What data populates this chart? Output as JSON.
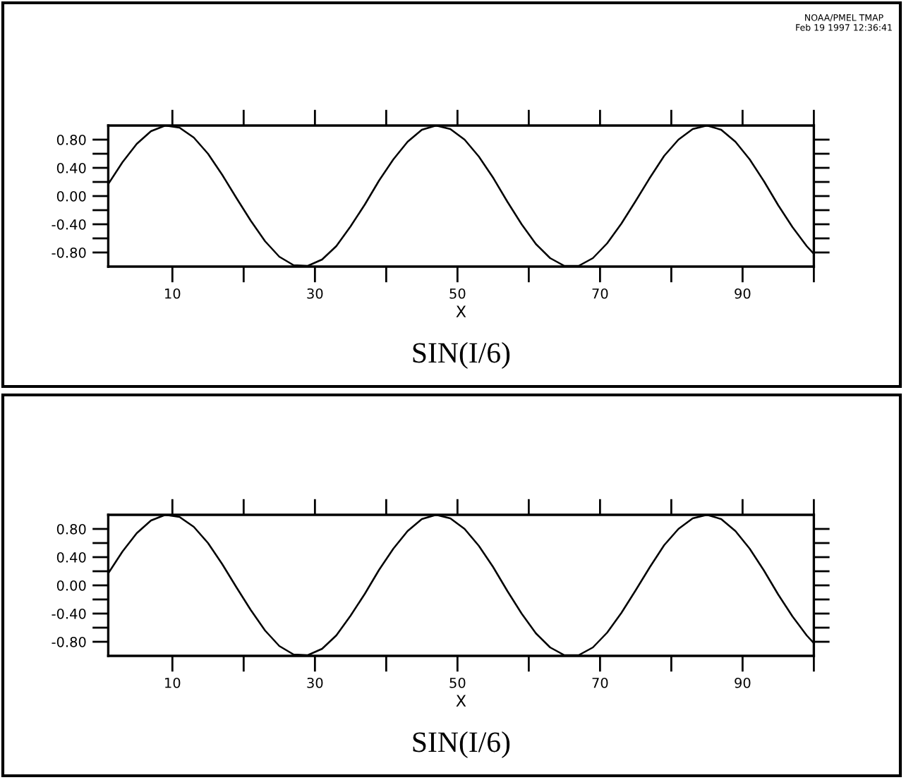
{
  "chart_data": [
    {
      "type": "line",
      "title": "SIN(I/6)",
      "xlabel": "X",
      "annotations": [
        "NOAA/PMEL TMAP",
        "Feb 19 1997 12:36:41"
      ],
      "x": [
        1,
        3,
        5,
        7,
        9,
        11,
        13,
        15,
        17,
        19,
        21,
        23,
        25,
        27,
        29,
        31,
        33,
        35,
        37,
        39,
        41,
        43,
        45,
        47,
        49,
        51,
        53,
        55,
        57,
        59,
        61,
        63,
        65,
        67,
        69,
        71,
        73,
        75,
        77,
        79,
        81,
        83,
        85,
        87,
        89,
        91,
        93,
        95,
        97,
        99,
        100
      ],
      "series": [
        {
          "color": "#000000",
          "values": [
            0.17,
            0.48,
            0.74,
            0.92,
            1.0,
            0.97,
            0.83,
            0.6,
            0.3,
            -0.03,
            -0.35,
            -0.64,
            -0.86,
            -0.98,
            -0.99,
            -0.9,
            -0.71,
            -0.43,
            -0.12,
            0.22,
            0.52,
            0.77,
            0.94,
            1.0,
            0.95,
            0.8,
            0.56,
            0.26,
            -0.08,
            -0.4,
            -0.68,
            -0.88,
            -0.99,
            -0.99,
            -0.88,
            -0.67,
            -0.39,
            -0.07,
            0.26,
            0.57,
            0.8,
            0.95,
            1.0,
            0.94,
            0.77,
            0.52,
            0.21,
            -0.13,
            -0.44,
            -0.71,
            -0.82
          ]
        }
      ],
      "xlim": [
        1,
        100
      ],
      "ylim": [
        -1,
        1
      ],
      "xticks": [
        10,
        {
          "value": 20,
          "label": null
        },
        30,
        {
          "value": 40,
          "label": null
        },
        50,
        {
          "value": 60,
          "label": null
        },
        70,
        {
          "value": 80,
          "label": null
        },
        90,
        {
          "value": 100,
          "label": null
        }
      ],
      "yticks": [
        {
          "value": -0.8,
          "label": "-0.80"
        },
        {
          "value": -0.6,
          "label": null
        },
        {
          "value": -0.4,
          "label": "-0.40"
        },
        {
          "value": -0.2,
          "label": null
        },
        {
          "value": 0,
          "label": "0.00"
        },
        {
          "value": 0.2,
          "label": null
        },
        {
          "value": 0.4,
          "label": "0.40"
        },
        {
          "value": 0.6,
          "label": null
        },
        {
          "value": 0.8,
          "label": "0.80"
        }
      ],
      "grid": false,
      "legend": false,
      "marker": "none",
      "line_style": "solid"
    },
    {
      "type": "line",
      "title": "SIN(I/6)",
      "xlabel": "X",
      "x": [
        1,
        3,
        5,
        7,
        9,
        11,
        13,
        15,
        17,
        19,
        21,
        23,
        25,
        27,
        29,
        31,
        33,
        35,
        37,
        39,
        41,
        43,
        45,
        47,
        49,
        51,
        53,
        55,
        57,
        59,
        61,
        63,
        65,
        67,
        69,
        71,
        73,
        75,
        77,
        79,
        81,
        83,
        85,
        87,
        89,
        91,
        93,
        95,
        97,
        99,
        100
      ],
      "series": [
        {
          "color": "#000000",
          "values": [
            0.17,
            0.48,
            0.74,
            0.92,
            1.0,
            0.97,
            0.83,
            0.6,
            0.3,
            -0.03,
            -0.35,
            -0.64,
            -0.86,
            -0.98,
            -0.99,
            -0.9,
            -0.71,
            -0.43,
            -0.12,
            0.22,
            0.52,
            0.77,
            0.94,
            1.0,
            0.95,
            0.8,
            0.56,
            0.26,
            -0.08,
            -0.4,
            -0.68,
            -0.88,
            -0.99,
            -0.99,
            -0.88,
            -0.67,
            -0.39,
            -0.07,
            0.26,
            0.57,
            0.8,
            0.95,
            1.0,
            0.94,
            0.77,
            0.52,
            0.21,
            -0.13,
            -0.44,
            -0.71,
            -0.82
          ]
        }
      ],
      "xlim": [
        1,
        100
      ],
      "ylim": [
        -1,
        1
      ],
      "xticks": [
        10,
        {
          "value": 20,
          "label": null
        },
        30,
        {
          "value": 40,
          "label": null
        },
        50,
        {
          "value": 60,
          "label": null
        },
        70,
        {
          "value": 80,
          "label": null
        },
        90,
        {
          "value": 100,
          "label": null
        }
      ],
      "yticks": [
        {
          "value": -0.8,
          "label": "-0.80"
        },
        {
          "value": -0.6,
          "label": null
        },
        {
          "value": -0.4,
          "label": "-0.40"
        },
        {
          "value": -0.2,
          "label": null
        },
        {
          "value": 0,
          "label": "0.00"
        },
        {
          "value": 0.2,
          "label": null
        },
        {
          "value": 0.4,
          "label": "0.40"
        },
        {
          "value": 0.6,
          "label": null
        },
        {
          "value": 0.8,
          "label": "0.80"
        }
      ],
      "grid": false,
      "legend": false,
      "marker": "none",
      "line_style": "solid"
    }
  ]
}
